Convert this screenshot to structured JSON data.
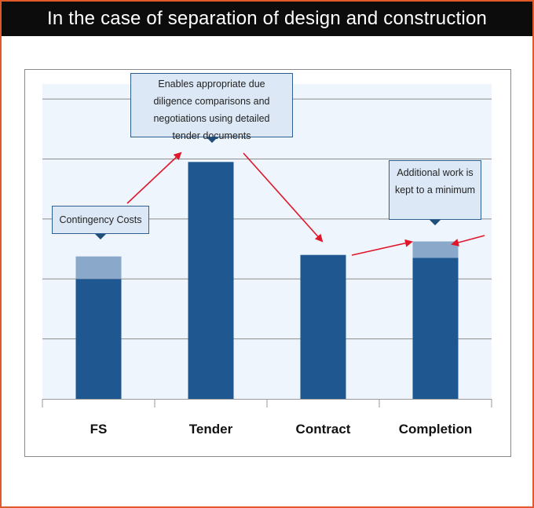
{
  "title": "In the case of separation of design and construction",
  "chart_data": {
    "type": "bar",
    "categories": [
      "FS",
      "Tender",
      "Contract",
      "Completion"
    ],
    "series": [
      {
        "name": "",
        "values": [
          4.0,
          7.9,
          4.8,
          4.7
        ],
        "color": "#1f5891"
      },
      {
        "name": "",
        "values": [
          0.75,
          0,
          0,
          0.55
        ],
        "color": "#8aa8c9"
      }
    ],
    "ylim": [
      0,
      10.5
    ],
    "grid": true,
    "xlabel": "",
    "ylabel": "",
    "annotations": [
      {
        "id": "contingency",
        "text": "Contingency Costs",
        "category": "FS"
      },
      {
        "id": "tender-note",
        "text": "Enables appropriate due diligence comparisons and negotiations using detailed tender documents",
        "category": "Tender"
      },
      {
        "id": "additional-note",
        "text": "Additional work is kept to a minimum",
        "category": "Completion"
      }
    ],
    "arrow_color": "#e0162b"
  }
}
